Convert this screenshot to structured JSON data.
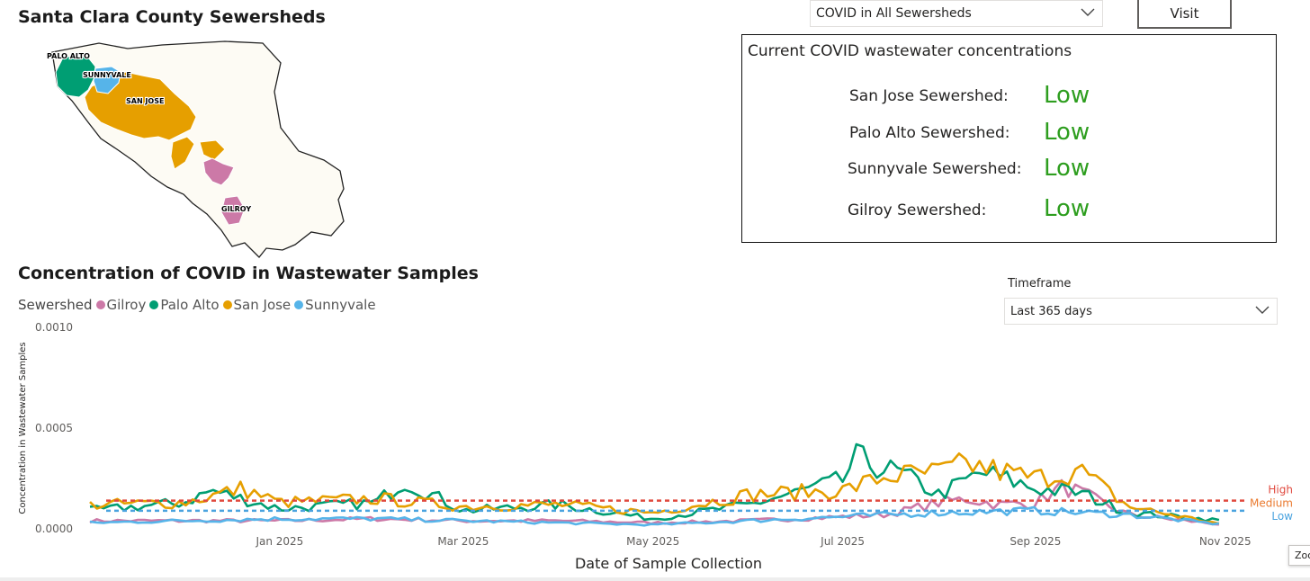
{
  "map_section": {
    "title": "Santa Clara County Sewersheds",
    "labels": {
      "palo_alto": "PALO ALTO",
      "sunnyvale": "SUNNYVALE",
      "san_jose": "SAN JOSE",
      "gilroy": "GILROY"
    }
  },
  "selector": {
    "value": "COVID in All Sewersheds"
  },
  "visit_button": {
    "label": "Visit"
  },
  "status_panel": {
    "title": "Current COVID wastewater concentrations",
    "rows": [
      {
        "label": "San Jose Sewershed:",
        "status": "Low"
      },
      {
        "label": "Palo Alto Sewershed:",
        "status": "Low"
      },
      {
        "label": "Sunnyvale Sewershed:",
        "status": "Low"
      },
      {
        "label": "Gilroy Sewershed:",
        "status": "Low"
      }
    ],
    "status_color": "#2e9e1f"
  },
  "timeframe": {
    "label": "Timeframe",
    "value": "Last 365 days"
  },
  "zoom_tab": {
    "label": "Zoo"
  },
  "chart_data": {
    "type": "line",
    "title": "Concentration of COVID in Wastewater Samples",
    "legend_title": "Sewershed",
    "legend_position": "top-left",
    "xlabel": "Date of Sample Collection",
    "ylabel": "Concentration in Wastewater Samples",
    "xlim": [
      "2024-11-01",
      "2025-11-08"
    ],
    "ylim": [
      0,
      0.001
    ],
    "x_ticks": [
      {
        "date": "2025-01-01",
        "label": "Jan 2025"
      },
      {
        "date": "2025-03-01",
        "label": "Mar 2025"
      },
      {
        "date": "2025-05-01",
        "label": "May 2025"
      },
      {
        "date": "2025-07-01",
        "label": "Jul 2025"
      },
      {
        "date": "2025-09-01",
        "label": "Sep 2025"
      },
      {
        "date": "2025-11-01",
        "label": "Nov 2025"
      }
    ],
    "y_ticks": [
      {
        "value": 0,
        "label": "0.0000"
      },
      {
        "value": 0.0005,
        "label": "0.0005"
      },
      {
        "value": 0.001,
        "label": "0.0010"
      }
    ],
    "grid": false,
    "thresholds": [
      {
        "name": "High",
        "value": 0.00014,
        "color": "#e04a3f"
      },
      {
        "name": "Medium",
        "value": 0.00014,
        "color": "#ea7a2f"
      },
      {
        "name": "Low",
        "value": 9e-05,
        "color": "#4aa3df"
      }
    ],
    "series": [
      {
        "name": "Gilroy",
        "color": "#cc79a7",
        "points": [
          [
            "2024-11-01",
            4e-05
          ],
          [
            "2024-12-01",
            4e-05
          ],
          [
            "2025-01-01",
            4e-05
          ],
          [
            "2025-02-01",
            5e-05
          ],
          [
            "2025-03-01",
            4e-05
          ],
          [
            "2025-04-01",
            4e-05
          ],
          [
            "2025-05-01",
            3e-05
          ],
          [
            "2025-06-01",
            4e-05
          ],
          [
            "2025-07-01",
            6e-05
          ],
          [
            "2025-07-15",
            7e-05
          ],
          [
            "2025-08-01",
            0.00013
          ],
          [
            "2025-08-10",
            0.00015
          ],
          [
            "2025-08-20",
            0.00012
          ],
          [
            "2025-09-01",
            0.00013
          ],
          [
            "2025-09-10",
            0.00021
          ],
          [
            "2025-09-15",
            0.00018
          ],
          [
            "2025-10-01",
            7e-05
          ],
          [
            "2025-11-01",
            2e-05
          ]
        ]
      },
      {
        "name": "Palo Alto",
        "color": "#009e73",
        "points": [
          [
            "2024-11-01",
            9e-05
          ],
          [
            "2024-12-01",
            0.00013
          ],
          [
            "2024-12-10",
            0.00019
          ],
          [
            "2025-01-01",
            0.0001
          ],
          [
            "2025-02-01",
            0.00013
          ],
          [
            "2025-02-10",
            0.00024
          ],
          [
            "2025-03-01",
            9e-05
          ],
          [
            "2025-04-01",
            0.00012
          ],
          [
            "2025-05-01",
            5e-05
          ],
          [
            "2025-06-01",
            0.00012
          ],
          [
            "2025-07-01",
            0.00024
          ],
          [
            "2025-07-05",
            0.00035
          ],
          [
            "2025-07-20",
            0.00027
          ],
          [
            "2025-08-01",
            0.00017
          ],
          [
            "2025-08-15",
            0.00028
          ],
          [
            "2025-09-01",
            0.0002
          ],
          [
            "2025-09-15",
            0.00018
          ],
          [
            "2025-10-01",
            8e-05
          ],
          [
            "2025-11-01",
            4e-05
          ]
        ]
      },
      {
        "name": "San Jose",
        "color": "#e69f00",
        "points": [
          [
            "2024-11-01",
            0.00012
          ],
          [
            "2024-12-01",
            0.00013
          ],
          [
            "2024-12-20",
            0.0002
          ],
          [
            "2025-01-01",
            0.00013
          ],
          [
            "2025-02-01",
            0.00015
          ],
          [
            "2025-03-01",
            0.00011
          ],
          [
            "2025-04-01",
            0.00012
          ],
          [
            "2025-05-01",
            8e-05
          ],
          [
            "2025-06-01",
            0.00017
          ],
          [
            "2025-07-01",
            0.00019
          ],
          [
            "2025-07-15",
            0.00026
          ],
          [
            "2025-08-01",
            0.00028
          ],
          [
            "2025-08-10",
            0.00032
          ],
          [
            "2025-09-01",
            0.00025
          ],
          [
            "2025-09-15",
            0.00029
          ],
          [
            "2025-10-01",
            0.00011
          ],
          [
            "2025-11-01",
            2e-05
          ]
        ]
      },
      {
        "name": "Sunnyvale",
        "color": "#56b4e9",
        "points": [
          [
            "2024-11-01",
            3e-05
          ],
          [
            "2024-12-01",
            4e-05
          ],
          [
            "2025-01-01",
            5e-05
          ],
          [
            "2025-02-01",
            5e-05
          ],
          [
            "2025-03-01",
            4e-05
          ],
          [
            "2025-04-01",
            3e-05
          ],
          [
            "2025-05-01",
            2e-05
          ],
          [
            "2025-06-01",
            4e-05
          ],
          [
            "2025-07-01",
            6e-05
          ],
          [
            "2025-08-01",
            8e-05
          ],
          [
            "2025-09-01",
            9e-05
          ],
          [
            "2025-10-01",
            7e-05
          ],
          [
            "2025-11-01",
            2e-05
          ]
        ]
      }
    ]
  }
}
